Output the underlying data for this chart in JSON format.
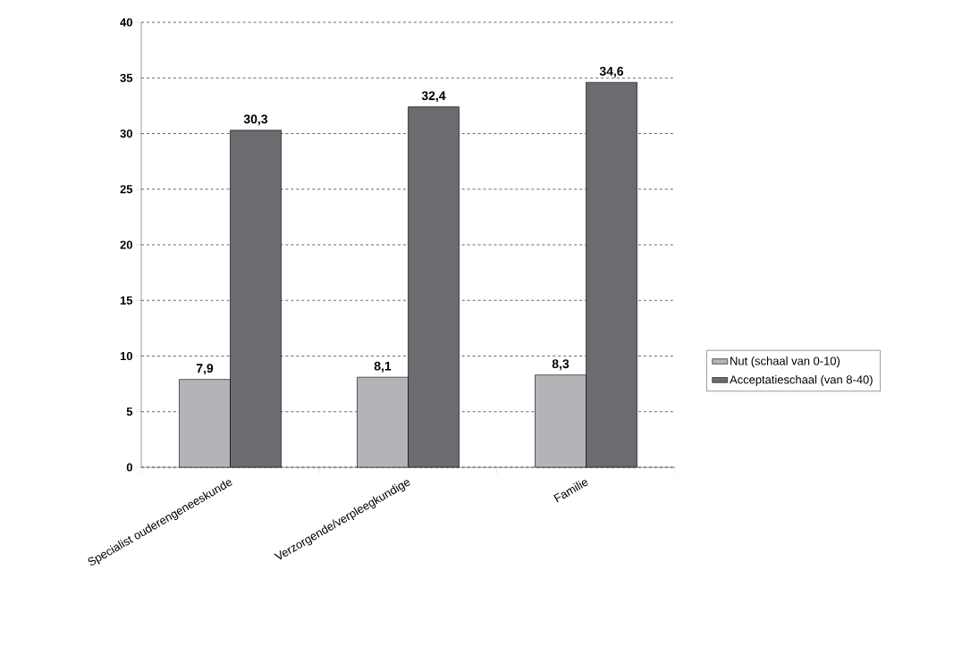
{
  "chart_data": {
    "type": "bar",
    "categories": [
      "Specialist ouderengeneeskunde",
      "Verzorgende/verpleegkundige",
      "Familie"
    ],
    "series": [
      {
        "name": "Nut (schaal van 0-10)",
        "color": "#b4b4b8",
        "values": [
          7.9,
          8.1,
          8.3
        ],
        "value_labels": [
          "7,9",
          "8,1",
          "8,3"
        ]
      },
      {
        "name": "Acceptatieschaal (van 8-40)",
        "color": "#6b6b70",
        "values": [
          30.3,
          32.4,
          34.6
        ],
        "value_labels": [
          "30,3",
          "32,4",
          "34,6"
        ]
      }
    ],
    "ylim": [
      0,
      40
    ],
    "yticks": [
      0,
      5,
      10,
      15,
      20,
      25,
      30,
      35,
      40
    ],
    "grid": "y",
    "legend": "right"
  }
}
